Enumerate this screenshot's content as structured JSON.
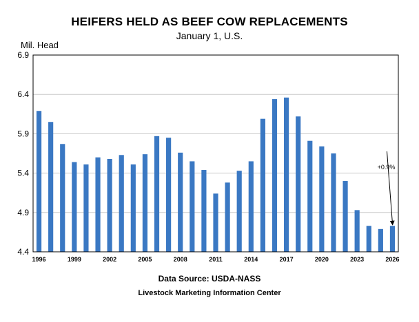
{
  "chart_data": {
    "type": "bar",
    "title": "HEIFERS HELD AS BEEF COW REPLACEMENTS",
    "subtitle": "January 1, U.S.",
    "ylabel": "Mil. Head",
    "xlabel": "",
    "ylim": [
      4.4,
      6.9
    ],
    "yticks": [
      "6.9",
      "6.4",
      "5.9",
      "5.4",
      "4.9",
      "4.4"
    ],
    "ytick_values": [
      6.9,
      6.4,
      5.9,
      5.4,
      4.9,
      4.4
    ],
    "grid": true,
    "bar_color": "#3a78c3",
    "categories": [
      "1996",
      "1997",
      "1998",
      "1999",
      "2000",
      "2001",
      "2002",
      "2003",
      "2004",
      "2005",
      "2006",
      "2007",
      "2008",
      "2009",
      "2010",
      "2011",
      "2012",
      "2013",
      "2014",
      "2015",
      "2016",
      "2017",
      "2018",
      "2019",
      "2020",
      "2021",
      "2022",
      "2023",
      "2024",
      "2025",
      "2026"
    ],
    "values": [
      6.19,
      6.05,
      5.77,
      5.54,
      5.51,
      5.6,
      5.58,
      5.63,
      5.51,
      5.64,
      5.87,
      5.85,
      5.66,
      5.55,
      5.44,
      5.14,
      5.28,
      5.43,
      5.55,
      6.09,
      6.34,
      6.36,
      6.12,
      5.81,
      5.74,
      5.65,
      5.3,
      4.93,
      4.73,
      4.69,
      4.73
    ],
    "xtick_labels": [
      "1996",
      "1999",
      "2002",
      "2005",
      "2008",
      "2011",
      "2014",
      "2017",
      "2020",
      "2023",
      "2026"
    ],
    "annotation": "+0.9%"
  },
  "footer": {
    "source": "Data Source:  USDA-NASS",
    "credit": "Livestock Marketing Information Center"
  }
}
